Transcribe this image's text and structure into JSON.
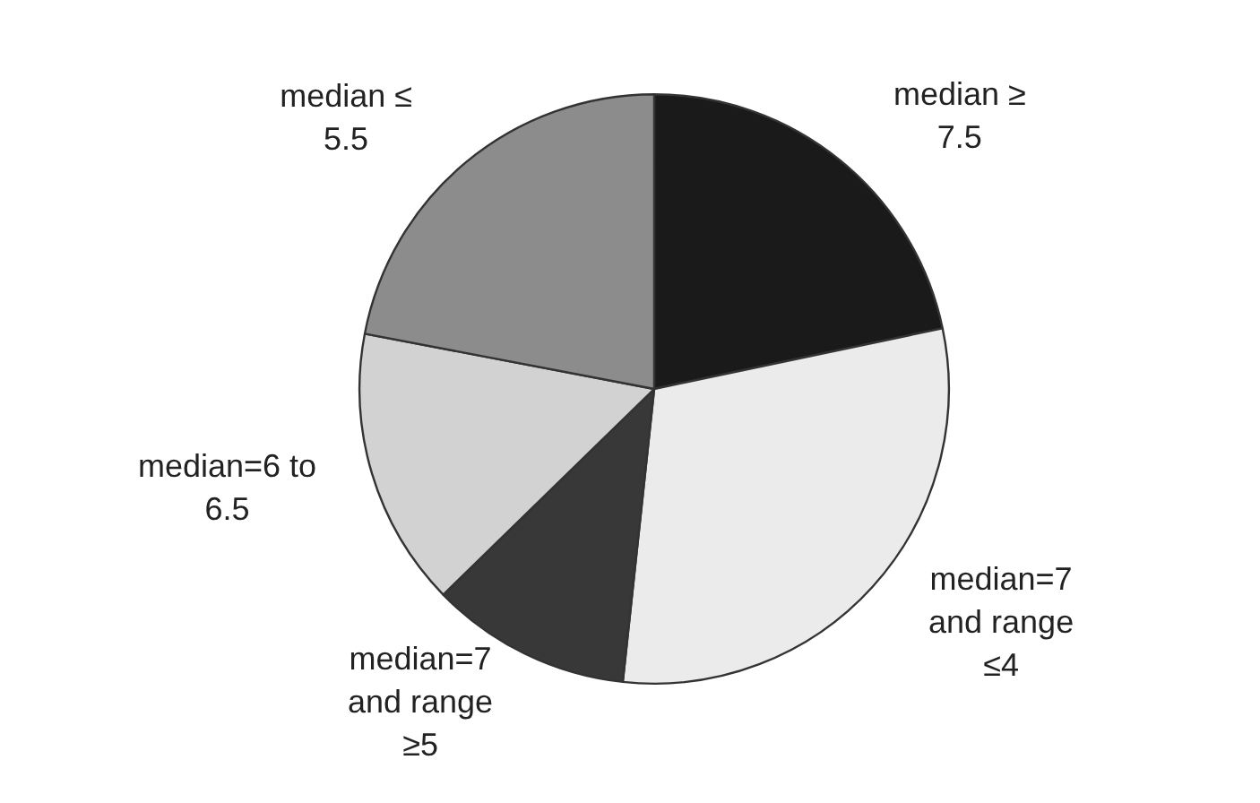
{
  "chart_data": {
    "type": "pie",
    "categories": [
      "median ≥ 7.5",
      "median=7 and range ≤4",
      "median=7 and range ≥5",
      "median=6 to 6.5",
      "median ≤ 5.5"
    ],
    "values": [
      21.7,
      30,
      11,
      15.3,
      22
    ],
    "colors": [
      "#1a1a1a",
      "#ebebeb",
      "#383838",
      "#d2d2d2",
      "#8c8c8c"
    ]
  }
}
